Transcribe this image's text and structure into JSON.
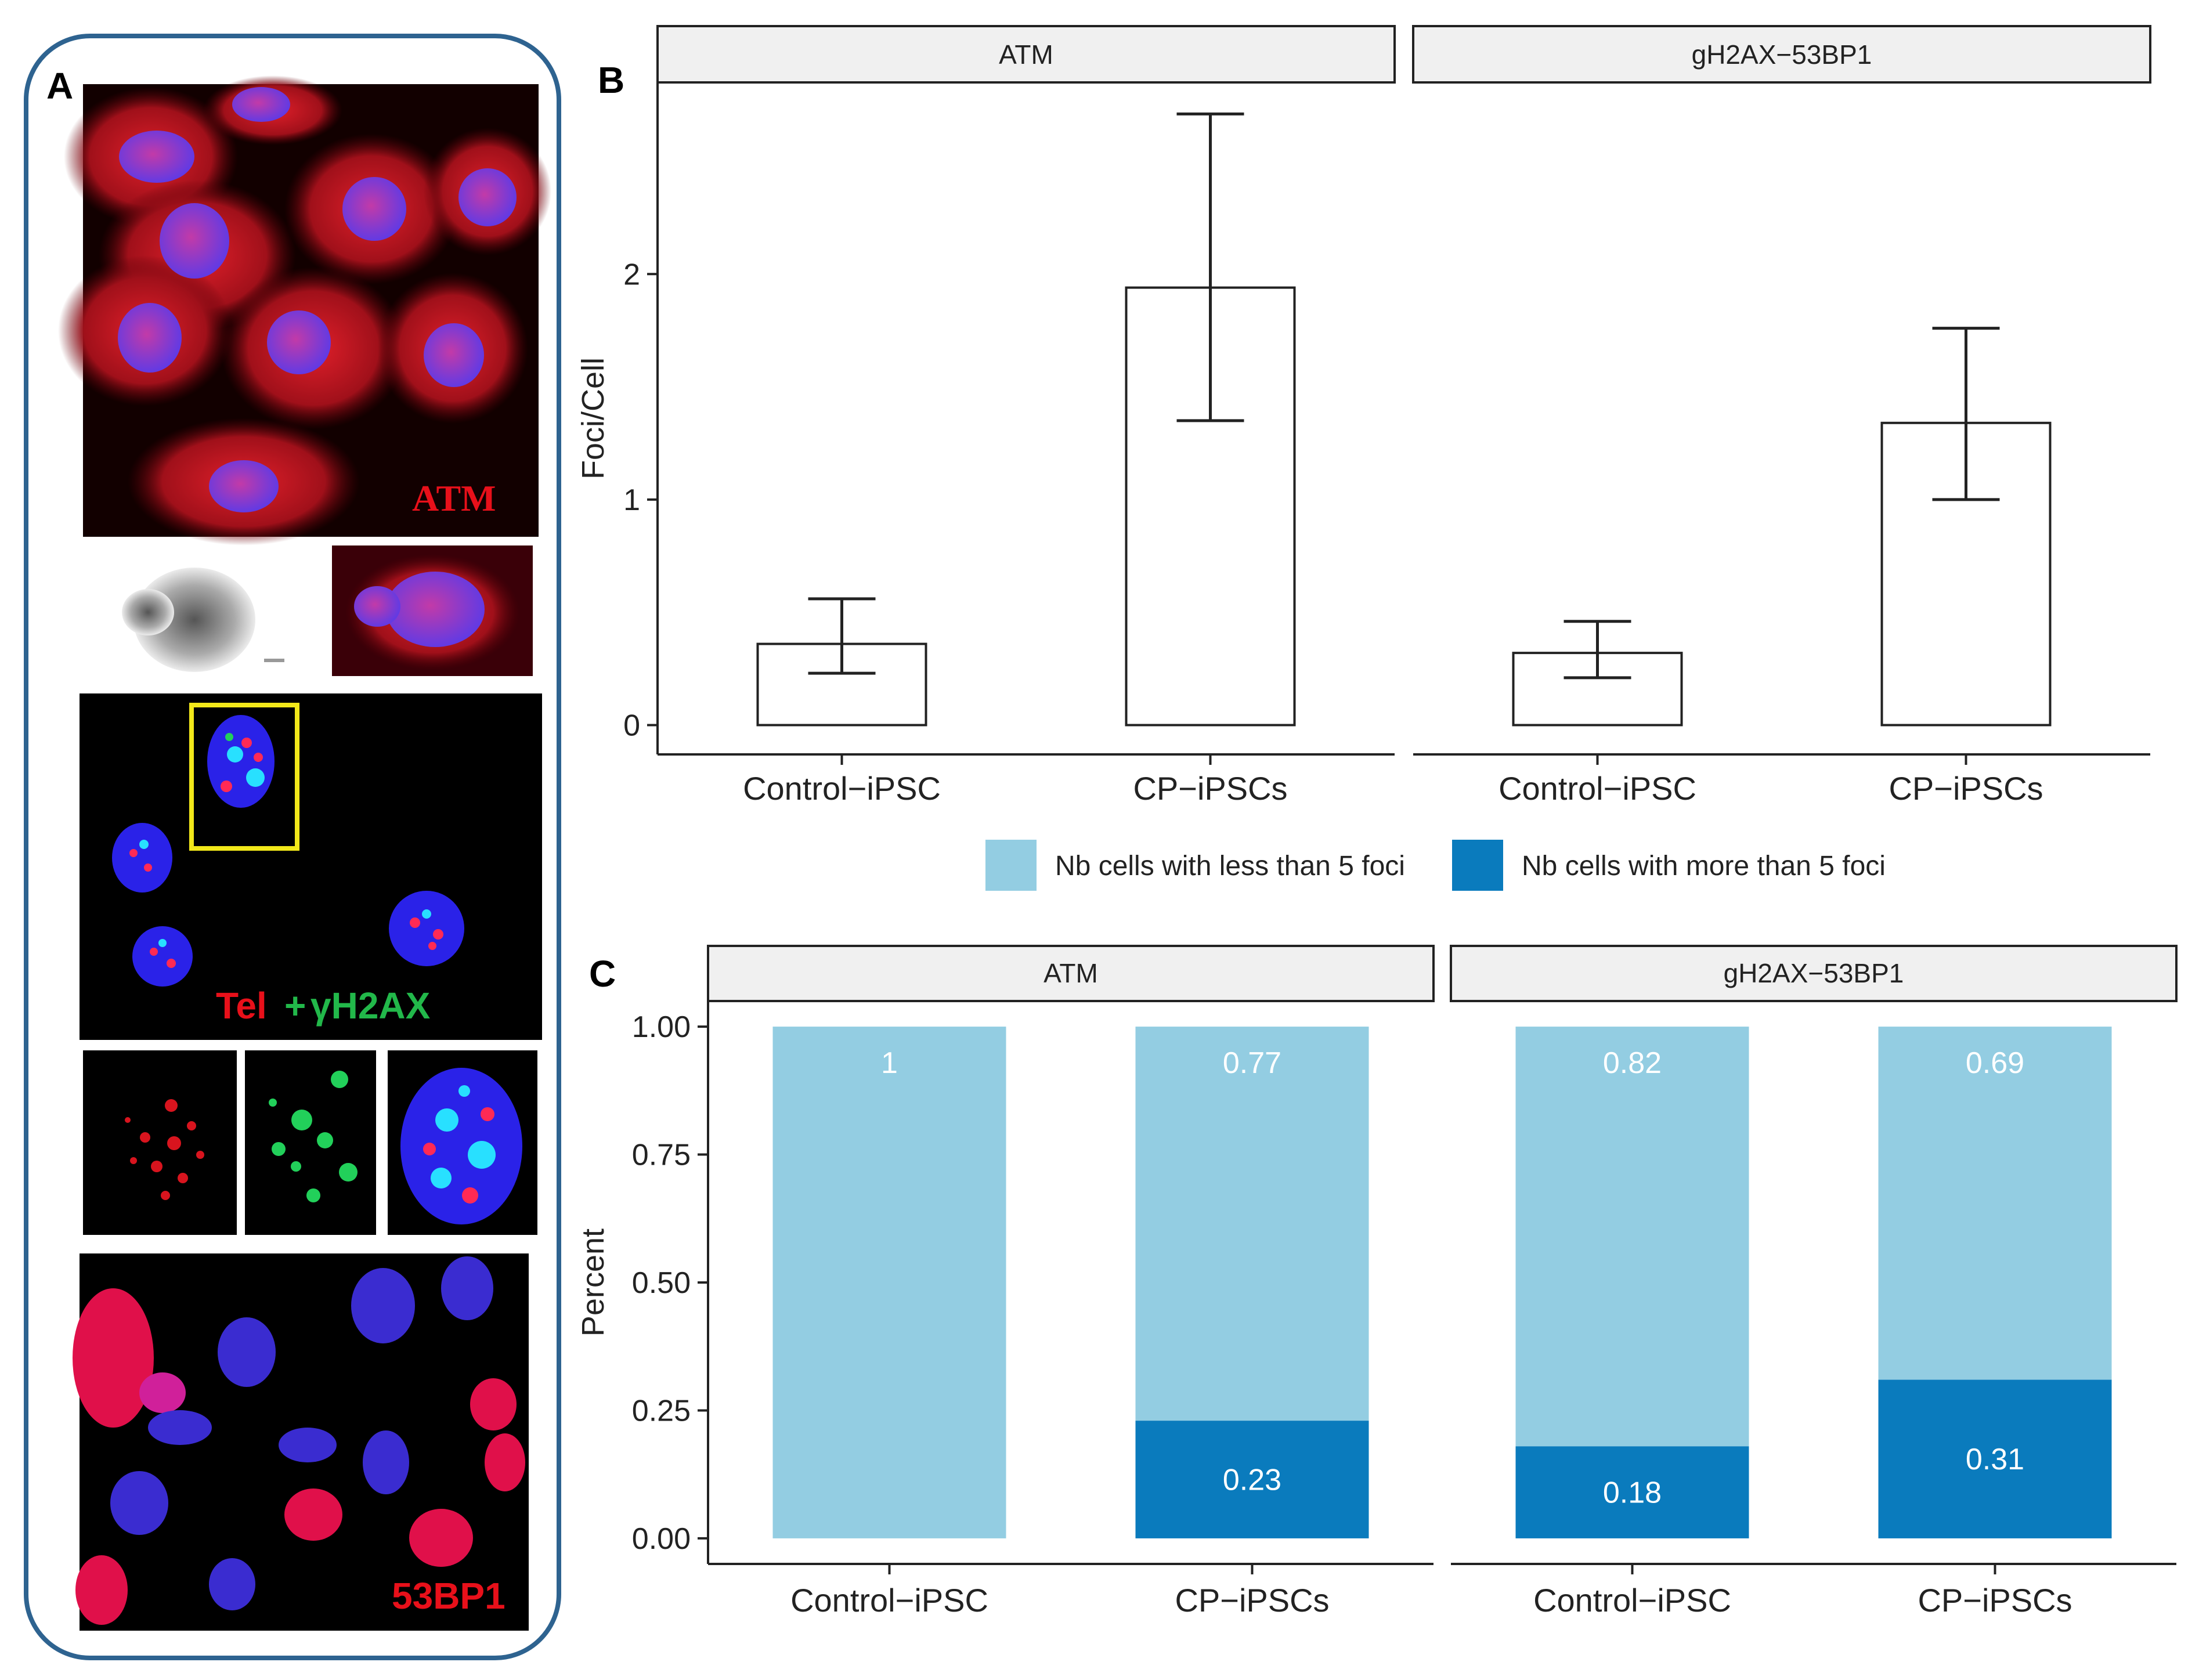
{
  "panels": {
    "a": "A",
    "b": "B",
    "c": "C"
  },
  "micrographs": {
    "atm_label": "ATM",
    "tel_label": "Tel",
    "plus": "+",
    "gamma_label": "γH2AX",
    "bp1_label": "53BP1"
  },
  "colors": {
    "less5": "#93cde2",
    "more5": "#0a7bbd",
    "strip": "#f0f0f0",
    "panel_border": "#2e6390",
    "nucleus": "#4a3cf0",
    "cytoplasm": "#c8161e",
    "telomere": "#ff2a55",
    "gamma": "#22d05a",
    "box": "#f2e81a"
  },
  "chart_data": [
    {
      "id": "B",
      "type": "bar",
      "facets": [
        "ATM",
        "gH2AX−53BP1"
      ],
      "categories": [
        "Control−iPSC",
        "CP−iPSCs"
      ],
      "ylabel": "Foci/Cell",
      "ylim": [
        -0.13,
        2.85
      ],
      "yticks": [
        0,
        1,
        2
      ],
      "series": [
        {
          "facet": "ATM",
          "values": [
            0.36,
            1.94
          ],
          "err_low": [
            0.23,
            1.35
          ],
          "err_high": [
            0.56,
            2.71
          ]
        },
        {
          "facet": "gH2AX−53BP1",
          "values": [
            0.32,
            1.34
          ],
          "err_low": [
            0.21,
            1.0
          ],
          "err_high": [
            0.46,
            1.76
          ]
        }
      ]
    },
    {
      "id": "C",
      "type": "bar",
      "stacked": true,
      "facets": [
        "ATM",
        "gH2AX−53BP1"
      ],
      "categories": [
        "Control−iPSC",
        "CP−iPSCs"
      ],
      "ylabel": "Percent",
      "ylim": [
        -0.05,
        1.05
      ],
      "yticks": [
        0,
        0.25,
        0.5,
        0.75,
        1
      ],
      "ytick_labels": [
        "0.00",
        "0.25",
        "0.50",
        "0.75",
        "1.00"
      ],
      "legend": [
        "Nb cells with less than 5 foci",
        "Nb cells with more than 5 foci"
      ],
      "legend_position": "top",
      "series": [
        {
          "name": "Nb cells with less than 5 foci",
          "facet": "ATM",
          "values": [
            1,
            0.77
          ],
          "labels": [
            "1",
            "0.77"
          ]
        },
        {
          "name": "Nb cells with more than 5 foci",
          "facet": "ATM",
          "values": [
            0,
            0.23
          ],
          "labels": [
            "",
            "0.23"
          ]
        },
        {
          "name": "Nb cells with less than 5 foci",
          "facet": "gH2AX−53BP1",
          "values": [
            0.82,
            0.69
          ],
          "labels": [
            "0.82",
            "0.69"
          ]
        },
        {
          "name": "Nb cells with more than 5 foci",
          "facet": "gH2AX−53BP1",
          "values": [
            0.18,
            0.31
          ],
          "labels": [
            "0.18",
            "0.31"
          ]
        }
      ]
    }
  ]
}
